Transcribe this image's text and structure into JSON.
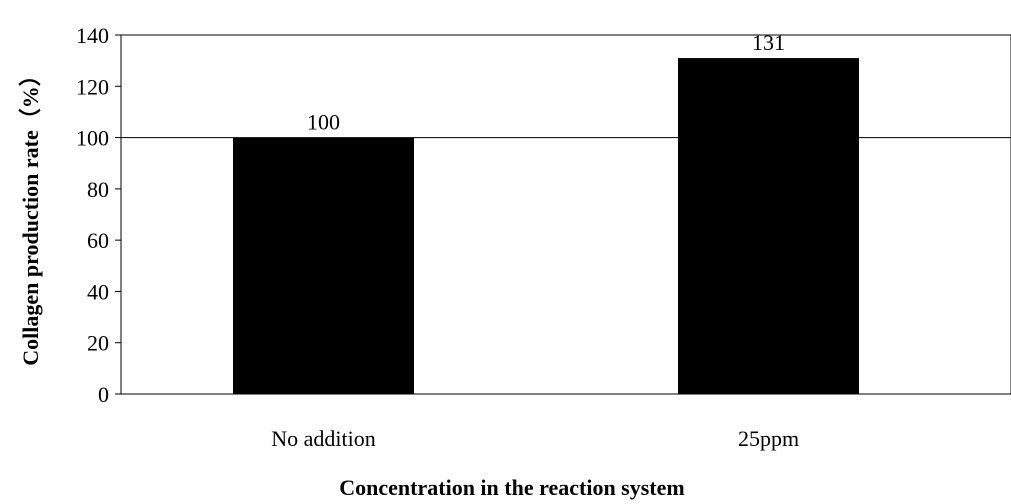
{
  "chart_data": {
    "type": "bar",
    "title": "",
    "xlabel": "Concentration in the reaction system",
    "ylabel": "Collagen production rate（%）",
    "categories": [
      "No addition",
      "25ppm"
    ],
    "values": [
      100,
      131
    ],
    "data_labels": [
      "100",
      "131"
    ],
    "ylim": [
      0,
      140
    ],
    "yticks": [
      0,
      20,
      40,
      60,
      80,
      100,
      120,
      140
    ],
    "reference_line": 100,
    "grid": false,
    "legend": "none",
    "bar_color": "#000000"
  }
}
